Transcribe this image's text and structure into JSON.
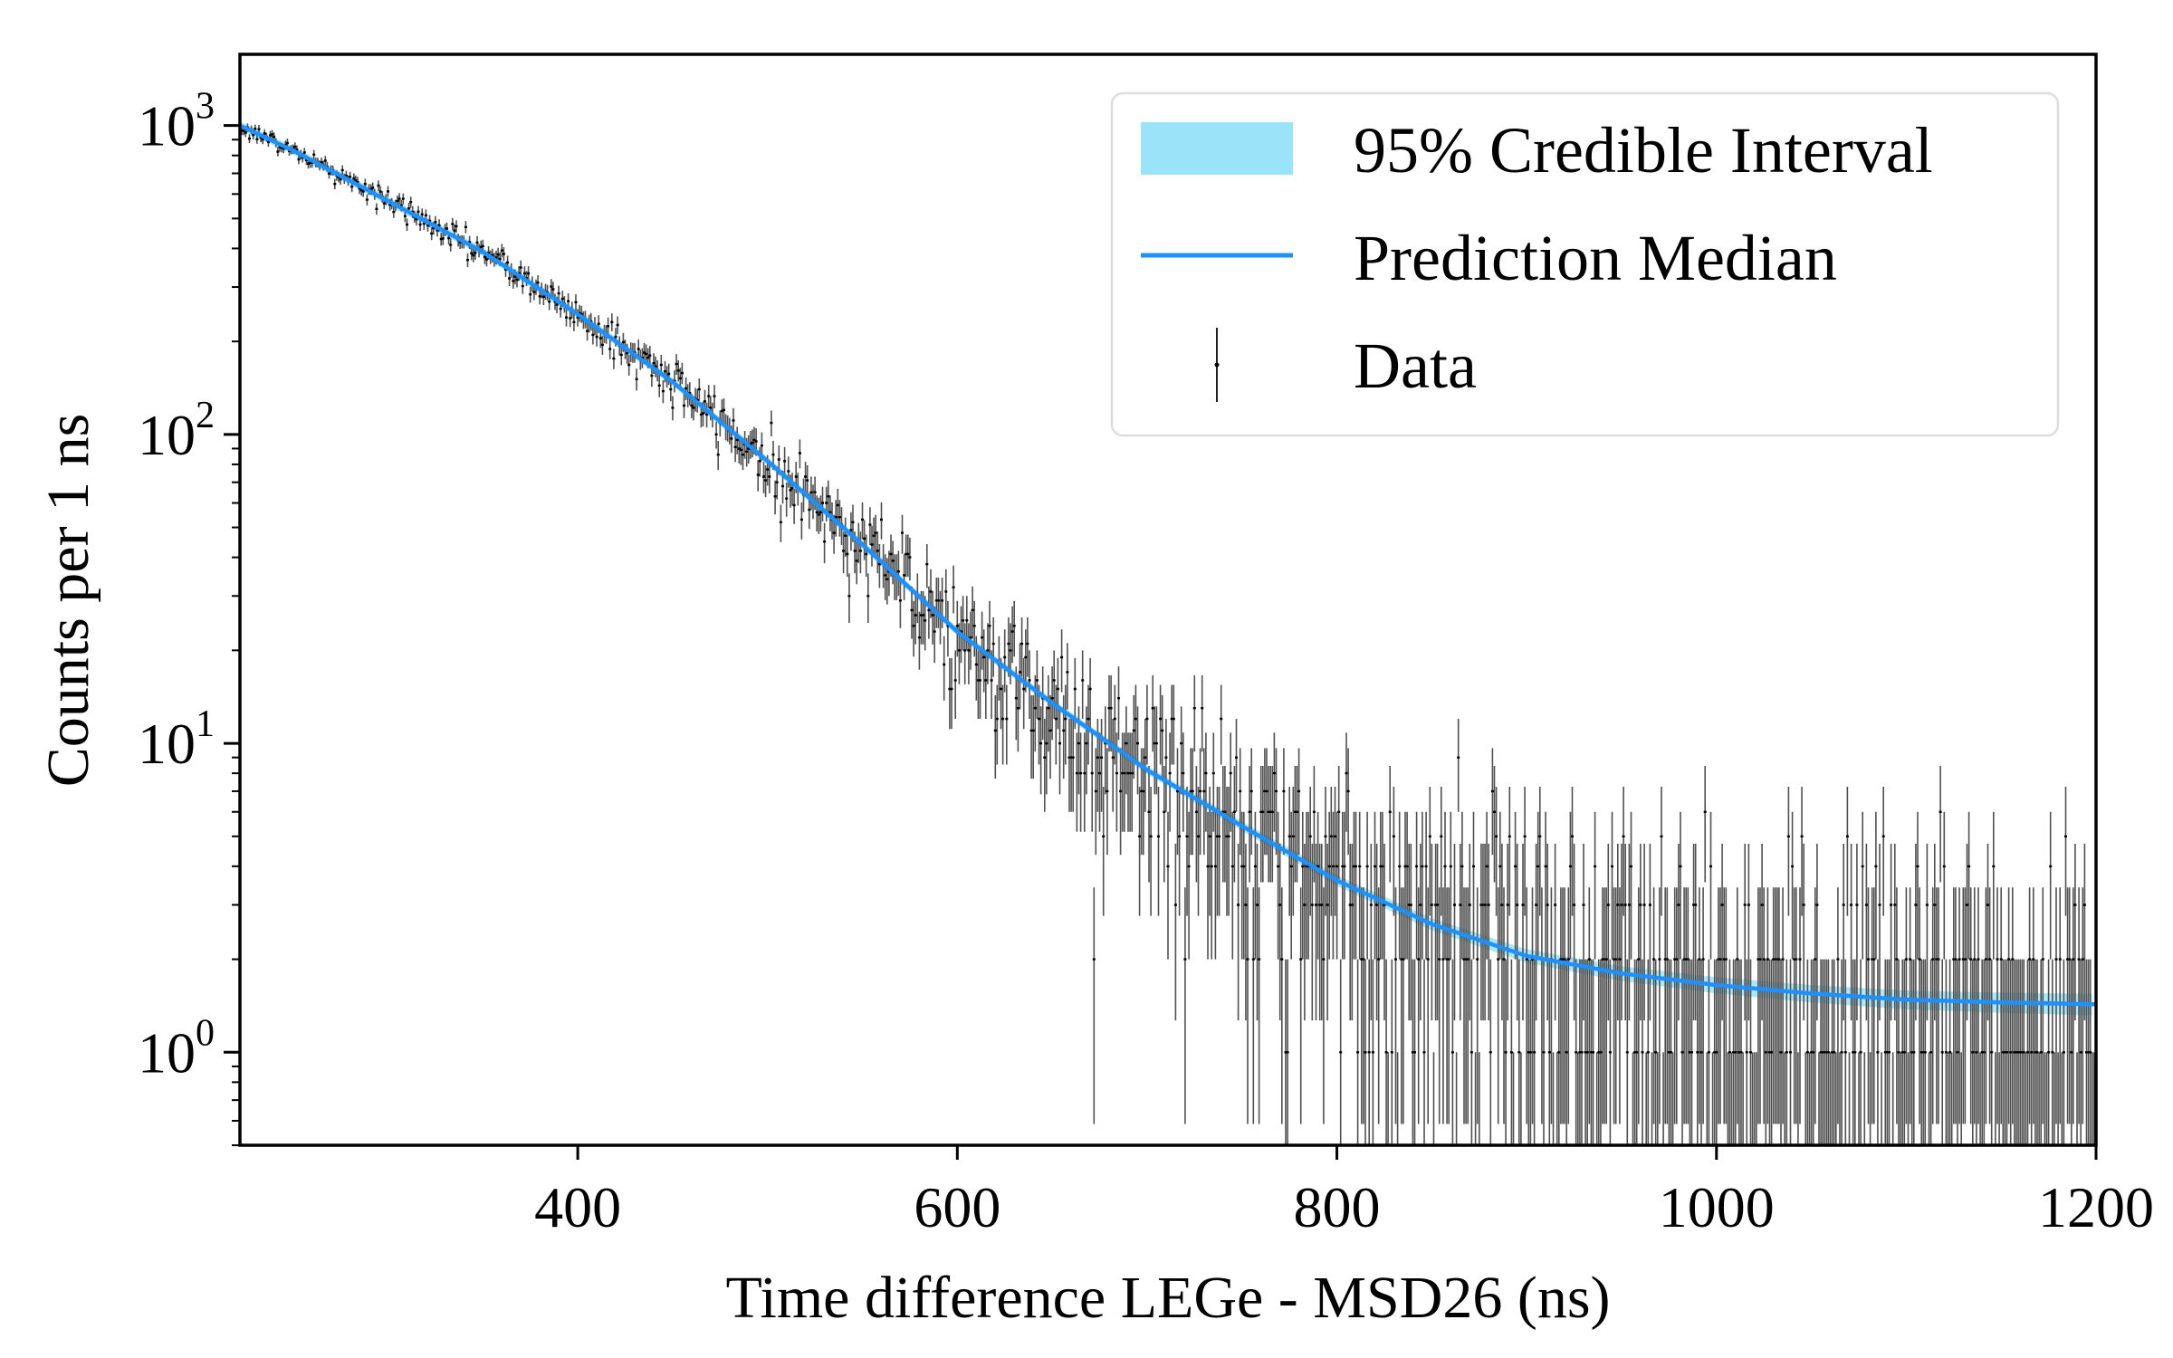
{
  "chart_data": {
    "type": "scatter",
    "title": "",
    "xlabel": "Time difference LEGe - MSD26 (ns)",
    "ylabel": "Counts per 1 ns",
    "xscale": "linear",
    "yscale": "log",
    "xlim": [
      222,
      1200
    ],
    "ylim": [
      0.5,
      1700
    ],
    "x_ticks": [
      400,
      600,
      800,
      1000,
      1200
    ],
    "y_ticks": [
      {
        "value": 1,
        "base": "10",
        "exp": "0"
      },
      {
        "value": 10,
        "base": "10",
        "exp": "1"
      },
      {
        "value": 100,
        "base": "10",
        "exp": "2"
      },
      {
        "value": 1000,
        "base": "10",
        "exp": "3"
      }
    ],
    "grid": false,
    "legend_position": "top-right",
    "legend": {
      "band_label": "95% Credible Interval",
      "median_label": "Prediction Median",
      "data_label": "Data"
    },
    "colors": {
      "band": "#9be3f8",
      "median": "#1e90ff",
      "data": "#505050"
    },
    "model": {
      "description": "Prediction median, two-exponential decay plus constant background",
      "time_range": [
        222,
        1200
      ],
      "median_points": [
        [
          222,
          1000
        ],
        [
          250,
          830
        ],
        [
          300,
          570
        ],
        [
          350,
          390
        ],
        [
          400,
          245
        ],
        [
          450,
          148
        ],
        [
          500,
          82
        ],
        [
          550,
          44
        ],
        [
          600,
          23
        ],
        [
          650,
          13.5
        ],
        [
          700,
          8.2
        ],
        [
          750,
          5.4
        ],
        [
          800,
          3.6
        ],
        [
          850,
          2.6
        ],
        [
          900,
          2.05
        ],
        [
          950,
          1.8
        ],
        [
          1000,
          1.65
        ],
        [
          1050,
          1.55
        ],
        [
          1100,
          1.48
        ],
        [
          1150,
          1.45
        ],
        [
          1200,
          1.43
        ]
      ],
      "band_halfwidth_fraction": [
        0.03,
        0.08
      ]
    },
    "data_description": "Per-ns counts with Poisson error bars scattered around the median from 222 to 1200 ns"
  }
}
